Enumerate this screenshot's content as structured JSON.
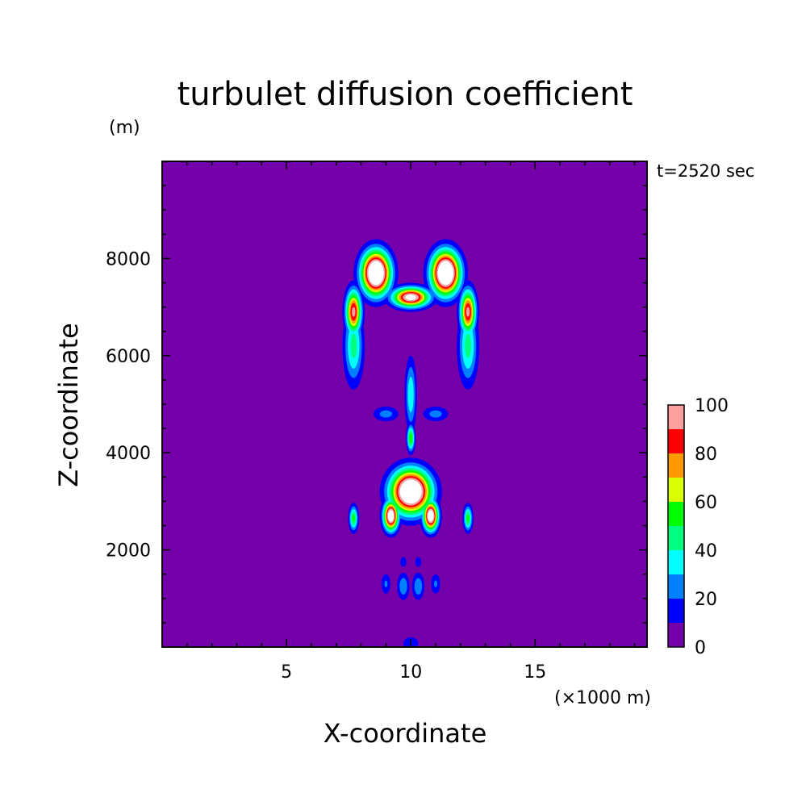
{
  "chart_data": {
    "type": "heatmap",
    "title": "turbulet diffusion coefficient",
    "xlabel": "X-coordinate",
    "ylabel": "Z-coordinate",
    "x_unit": "(×1000 m)",
    "y_unit": "(m)",
    "time_label": "t=2520 sec",
    "xlim": [
      0,
      19.5
    ],
    "ylim": [
      0,
      10000
    ],
    "x_ticks": [
      5,
      10,
      15
    ],
    "y_ticks": [
      2000,
      4000,
      6000,
      8000
    ],
    "colorbar": {
      "ticks": [
        0,
        20,
        40,
        60,
        80,
        100
      ],
      "levels": [
        0,
        10,
        20,
        30,
        40,
        50,
        60,
        70,
        80,
        90,
        100
      ],
      "colors": [
        "#7300a8",
        "#0000ff",
        "#0080ff",
        "#00ffff",
        "#00ff80",
        "#00ff00",
        "#d9ff00",
        "#ff9900",
        "#ff0000",
        "#ffa0a0"
      ],
      "over_color": "#ffffff"
    },
    "background_color": "#7300a8"
  }
}
